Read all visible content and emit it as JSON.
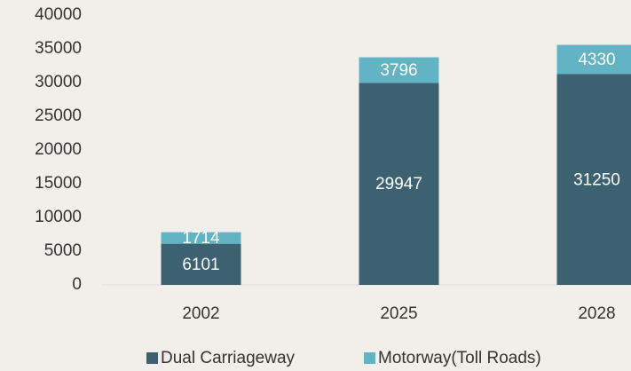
{
  "chart_data": {
    "type": "bar",
    "stacked": true,
    "categories": [
      "2002",
      "2025",
      "2028"
    ],
    "series": [
      {
        "name": "Dual Carriageway",
        "color": "#3c6271",
        "values": [
          6101,
          29947,
          31250
        ]
      },
      {
        "name": "Motorway(Toll Roads)",
        "color": "#62b4c4",
        "values": [
          1714,
          3796,
          4330
        ]
      }
    ],
    "ylim": [
      0,
      40000
    ],
    "yticks": [
      0,
      5000,
      10000,
      15000,
      20000,
      25000,
      30000,
      35000,
      40000
    ],
    "legend": "bottom"
  }
}
